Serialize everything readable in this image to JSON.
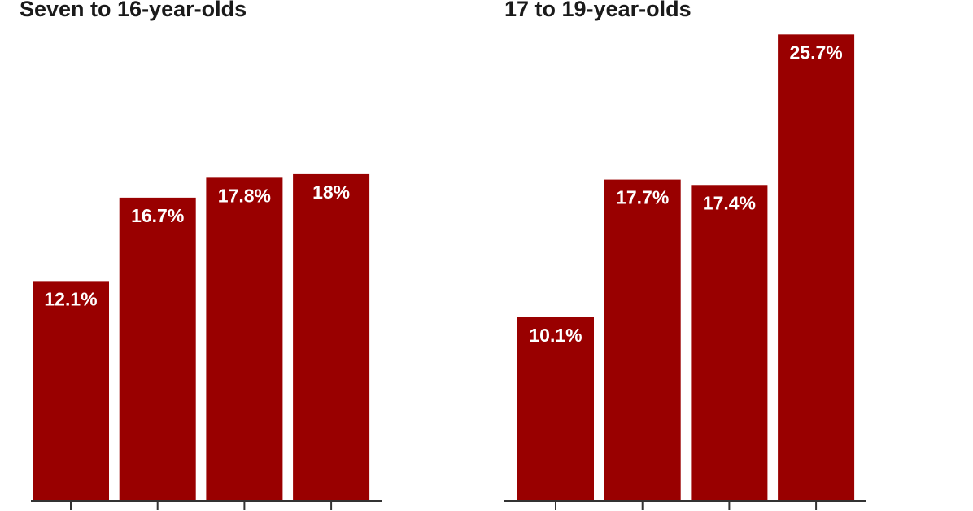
{
  "chart_data": [
    {
      "type": "bar",
      "title": "Seven to 16-year-olds",
      "categories": [
        null,
        null,
        null,
        null
      ],
      "values": [
        12.1,
        16.7,
        17.8,
        18
      ],
      "value_labels": [
        "12.1%",
        "16.7%",
        "17.8%",
        "18%"
      ],
      "color": "#990000",
      "ylim": [
        0,
        27.6
      ]
    },
    {
      "type": "bar",
      "title": "17 to 19-year-olds",
      "categories": [
        null,
        null,
        null,
        null
      ],
      "values": [
        10.1,
        17.7,
        17.4,
        25.7
      ],
      "value_labels": [
        "10.1%",
        "17.7%",
        "17.4%",
        "25.7%"
      ],
      "color": "#990000",
      "ylim": [
        0,
        27.6
      ]
    }
  ]
}
